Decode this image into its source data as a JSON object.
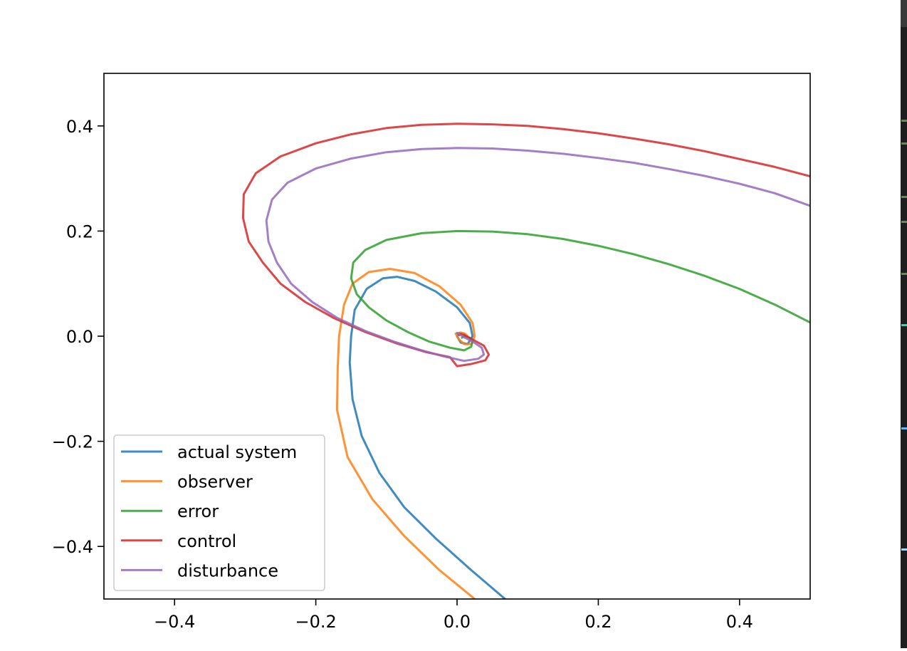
{
  "chart_data": {
    "type": "line",
    "title": "",
    "xlabel": "",
    "ylabel": "",
    "xlim": [
      -0.5,
      0.5
    ],
    "ylim": [
      -0.5,
      0.5
    ],
    "xticks": [
      -0.4,
      -0.2,
      0.0,
      0.2,
      0.4
    ],
    "yticks": [
      -0.4,
      -0.2,
      0.0,
      0.2,
      0.4
    ],
    "xtick_labels": [
      "−0.4",
      "−0.2",
      "0.0",
      "0.2",
      "0.4"
    ],
    "ytick_labels": [
      "−0.4",
      "−0.2",
      "0.0",
      "0.2",
      "0.4"
    ],
    "grid": false,
    "legend_position": "lower left",
    "series": [
      {
        "name": "actual system",
        "color": "#1f77b4",
        "points": [
          [
            0.068,
            -0.5
          ],
          [
            0.02,
            -0.445
          ],
          [
            -0.03,
            -0.385
          ],
          [
            -0.075,
            -0.325
          ],
          [
            -0.11,
            -0.26
          ],
          [
            -0.135,
            -0.19
          ],
          [
            -0.148,
            -0.12
          ],
          [
            -0.152,
            -0.05
          ],
          [
            -0.15,
            0.0
          ],
          [
            -0.145,
            0.05
          ],
          [
            -0.128,
            0.09
          ],
          [
            -0.105,
            0.11
          ],
          [
            -0.085,
            0.113
          ],
          [
            -0.06,
            0.105
          ],
          [
            -0.03,
            0.085
          ],
          [
            0.0,
            0.055
          ],
          [
            0.018,
            0.025
          ],
          [
            0.022,
            0.0
          ],
          [
            0.015,
            -0.015
          ],
          [
            0.005,
            -0.012
          ],
          [
            0.0,
            0.0
          ],
          [
            0.003,
            0.006
          ],
          [
            0.01,
            0.005
          ],
          [
            0.012,
            0.0
          ]
        ]
      },
      {
        "name": "observer",
        "color": "#ff7f0e",
        "points": [
          [
            0.025,
            -0.5
          ],
          [
            -0.025,
            -0.445
          ],
          [
            -0.075,
            -0.38
          ],
          [
            -0.12,
            -0.31
          ],
          [
            -0.155,
            -0.23
          ],
          [
            -0.17,
            -0.14
          ],
          [
            -0.169,
            -0.06
          ],
          [
            -0.167,
            0.0
          ],
          [
            -0.16,
            0.06
          ],
          [
            -0.148,
            0.1
          ],
          [
            -0.125,
            0.122
          ],
          [
            -0.095,
            0.128
          ],
          [
            -0.06,
            0.12
          ],
          [
            -0.025,
            0.095
          ],
          [
            0.005,
            0.06
          ],
          [
            0.022,
            0.025
          ],
          [
            0.025,
            0.0
          ],
          [
            0.02,
            -0.015
          ],
          [
            0.01,
            -0.015
          ],
          [
            0.002,
            -0.005
          ],
          [
            -0.002,
            0.005
          ],
          [
            0.005,
            0.007
          ],
          [
            0.012,
            0.004
          ],
          [
            0.015,
            0.0
          ]
        ]
      },
      {
        "name": "error",
        "color": "#2ca02c",
        "points": [
          [
            0.5,
            0.026
          ],
          [
            0.45,
            0.06
          ],
          [
            0.4,
            0.09
          ],
          [
            0.35,
            0.115
          ],
          [
            0.3,
            0.137
          ],
          [
            0.25,
            0.156
          ],
          [
            0.2,
            0.172
          ],
          [
            0.15,
            0.185
          ],
          [
            0.1,
            0.194
          ],
          [
            0.05,
            0.199
          ],
          [
            0.0,
            0.2
          ],
          [
            -0.05,
            0.196
          ],
          [
            -0.1,
            0.183
          ],
          [
            -0.13,
            0.164
          ],
          [
            -0.147,
            0.14
          ],
          [
            -0.15,
            0.11
          ],
          [
            -0.142,
            0.08
          ],
          [
            -0.125,
            0.055
          ],
          [
            -0.1,
            0.03
          ],
          [
            -0.07,
            0.008
          ],
          [
            -0.04,
            -0.01
          ],
          [
            -0.01,
            -0.022
          ],
          [
            0.01,
            -0.027
          ],
          [
            0.02,
            -0.02
          ],
          [
            0.022,
            -0.01
          ],
          [
            0.018,
            -0.003
          ],
          [
            0.01,
            0.0
          ],
          [
            0.007,
            -0.003
          ]
        ]
      },
      {
        "name": "control",
        "color": "#d62728",
        "points": [
          [
            0.5,
            0.304
          ],
          [
            0.45,
            0.322
          ],
          [
            0.4,
            0.337
          ],
          [
            0.35,
            0.352
          ],
          [
            0.3,
            0.365
          ],
          [
            0.25,
            0.376
          ],
          [
            0.2,
            0.386
          ],
          [
            0.15,
            0.394
          ],
          [
            0.1,
            0.4
          ],
          [
            0.05,
            0.403
          ],
          [
            0.0,
            0.404
          ],
          [
            -0.05,
            0.402
          ],
          [
            -0.1,
            0.396
          ],
          [
            -0.15,
            0.384
          ],
          [
            -0.2,
            0.367
          ],
          [
            -0.25,
            0.342
          ],
          [
            -0.285,
            0.31
          ],
          [
            -0.302,
            0.27
          ],
          [
            -0.303,
            0.225
          ],
          [
            -0.295,
            0.18
          ],
          [
            -0.275,
            0.14
          ],
          [
            -0.25,
            0.1
          ],
          [
            -0.215,
            0.065
          ],
          [
            -0.175,
            0.035
          ],
          [
            -0.13,
            0.008
          ],
          [
            -0.085,
            -0.014
          ],
          [
            -0.045,
            -0.03
          ],
          [
            -0.01,
            -0.04
          ],
          [
            0.0,
            -0.057
          ],
          [
            0.02,
            -0.053
          ],
          [
            0.04,
            -0.046
          ],
          [
            0.045,
            -0.035
          ],
          [
            0.038,
            -0.018
          ],
          [
            0.02,
            -0.005
          ],
          [
            0.01,
            0.002
          ],
          [
            0.005,
            0.004
          ],
          [
            0.003,
            0.002
          ]
        ]
      },
      {
        "name": "disturbance",
        "color": "#9467bd",
        "points": [
          [
            0.5,
            0.248
          ],
          [
            0.45,
            0.272
          ],
          [
            0.4,
            0.29
          ],
          [
            0.35,
            0.305
          ],
          [
            0.3,
            0.318
          ],
          [
            0.25,
            0.33
          ],
          [
            0.2,
            0.339
          ],
          [
            0.15,
            0.347
          ],
          [
            0.1,
            0.353
          ],
          [
            0.05,
            0.357
          ],
          [
            0.0,
            0.358
          ],
          [
            -0.05,
            0.356
          ],
          [
            -0.1,
            0.35
          ],
          [
            -0.15,
            0.338
          ],
          [
            -0.2,
            0.319
          ],
          [
            -0.24,
            0.292
          ],
          [
            -0.262,
            0.26
          ],
          [
            -0.27,
            0.22
          ],
          [
            -0.267,
            0.18
          ],
          [
            -0.255,
            0.14
          ],
          [
            -0.235,
            0.1
          ],
          [
            -0.205,
            0.065
          ],
          [
            -0.17,
            0.035
          ],
          [
            -0.13,
            0.01
          ],
          [
            -0.09,
            -0.01
          ],
          [
            -0.05,
            -0.027
          ],
          [
            -0.02,
            -0.038
          ],
          [
            0.01,
            -0.047
          ],
          [
            0.03,
            -0.043
          ],
          [
            0.038,
            -0.035
          ],
          [
            0.035,
            -0.022
          ],
          [
            0.022,
            -0.01
          ],
          [
            0.01,
            -0.002
          ],
          [
            0.003,
            0.004
          ],
          [
            0.0,
            0.006
          ],
          [
            0.002,
            0.004
          ]
        ]
      }
    ]
  },
  "side_strip": {
    "background": "#1e1e1e",
    "mark_colors": [
      "#6a8759",
      "#6a8759",
      "#6a8759",
      "#6a8759",
      "#6a8759",
      "#4ec9b0",
      "#4fc1ff",
      "#9cdcfe"
    ]
  }
}
